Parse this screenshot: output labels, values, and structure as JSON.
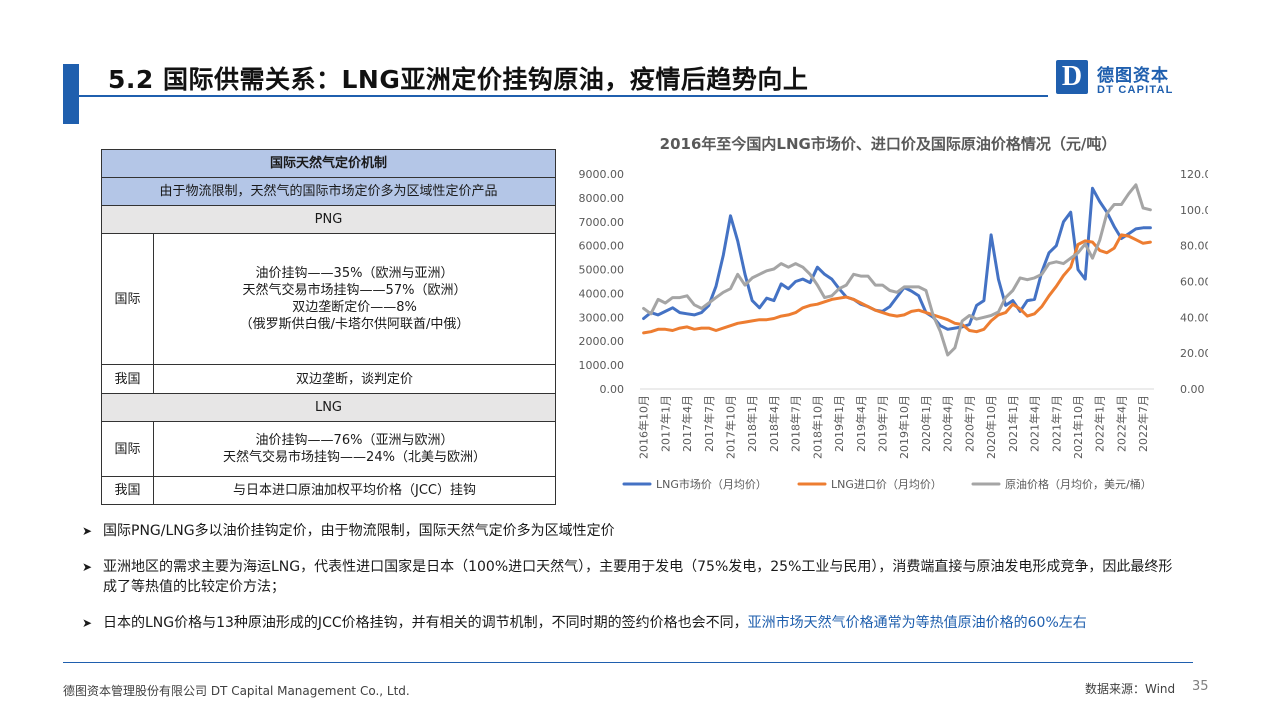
{
  "header": {
    "title": "5.2 国际供需关系：LNG亚洲定价挂钩原油，疫情后趋势向上",
    "logo_mark": "D",
    "logo_cn": "德图资本",
    "logo_en": "DT CAPITAL",
    "brand_color": "#1f5fae"
  },
  "table": {
    "title": "国际天然气定价机制",
    "subtitle": "由于物流限制，天然气的国际市场定价多为区域性定价产品",
    "png_label": "PNG",
    "png_intl_label": "国际",
    "png_intl_lines": [
      "油价挂钩——35%（欧洲与亚洲）",
      "天然气交易市场挂钩——57%（欧洲）",
      "双边垄断定价——8%",
      "（俄罗斯供白俄/卡塔尔供阿联酋/中俄）"
    ],
    "png_china_label": "我国",
    "png_china_text": "双边垄断，谈判定价",
    "lng_label": "LNG",
    "lng_intl_label": "国际",
    "lng_intl_lines": [
      "油价挂钩——76%（亚洲与欧洲）",
      "天然气交易市场挂钩——24%（北美与欧洲）"
    ],
    "lng_china_label": "我国",
    "lng_china_text": "与日本进口原油加权平均价格（JCC）挂钩"
  },
  "chart_data": {
    "type": "line",
    "title": "2016年至今国内LNG市场价、进口价及国际原油价格情况（元/吨）",
    "x": [
      "2016年10月",
      "2016年11月",
      "2016年12月",
      "2017年1月",
      "2017年2月",
      "2017年3月",
      "2017年4月",
      "2017年5月",
      "2017年6月",
      "2017年7月",
      "2017年8月",
      "2017年9月",
      "2017年10月",
      "2017年11月",
      "2017年12月",
      "2018年1月",
      "2018年2月",
      "2018年3月",
      "2018年4月",
      "2018年5月",
      "2018年6月",
      "2018年7月",
      "2018年8月",
      "2018年9月",
      "2018年10月",
      "2018年11月",
      "2018年12月",
      "2019年1月",
      "2019年2月",
      "2019年3月",
      "2019年4月",
      "2019年5月",
      "2019年6月",
      "2019年7月",
      "2019年8月",
      "2019年9月",
      "2019年10月",
      "2019年11月",
      "2019年12月",
      "2020年1月",
      "2020年2月",
      "2020年3月",
      "2020年4月",
      "2020年5月",
      "2020年6月",
      "2020年7月",
      "2020年8月",
      "2020年9月",
      "2020年10月",
      "2020年11月",
      "2020年12月",
      "2021年1月",
      "2021年2月",
      "2021年3月",
      "2021年4月",
      "2021年5月",
      "2021年6月",
      "2021年7月",
      "2021年8月",
      "2021年9月",
      "2021年10月",
      "2021年11月",
      "2021年12月",
      "2022年1月",
      "2022年2月",
      "2022年3月",
      "2022年4月",
      "2022年5月",
      "2022年6月",
      "2022年7月",
      "2022年8月"
    ],
    "x_tick_labels": [
      "2016年10月",
      "2017年1月",
      "2017年4月",
      "2017年7月",
      "2017年10月",
      "2018年1月",
      "2018年4月",
      "2018年7月",
      "2018年10月",
      "2019年1月",
      "2019年4月",
      "2019年7月",
      "2019年10月",
      "2020年1月",
      "2020年4月",
      "2020年7月",
      "2020年10月",
      "2021年1月",
      "2021年4月",
      "2021年7月",
      "2021年10月",
      "2022年1月",
      "2022年4月",
      "2022年7月"
    ],
    "y_left_ticks": [
      "0.00",
      "1000.00",
      "2000.00",
      "3000.00",
      "4000.00",
      "5000.00",
      "6000.00",
      "7000.00",
      "8000.00",
      "9000.00"
    ],
    "y_right_ticks": [
      "0.00",
      "20.00",
      "40.00",
      "60.00",
      "80.00",
      "100.00",
      "120.00"
    ],
    "ylim_left": [
      0,
      9000
    ],
    "ylim_right": [
      0,
      120
    ],
    "grid": false,
    "legend_position": "bottom",
    "series": [
      {
        "name": "LNG市场价（月均价）",
        "axis": "left",
        "color": "#4472c4",
        "values": [
          2950,
          3200,
          3100,
          3250,
          3400,
          3200,
          3150,
          3100,
          3200,
          3500,
          4300,
          5600,
          7250,
          6200,
          4800,
          3700,
          3400,
          3800,
          3700,
          4400,
          4200,
          4500,
          4600,
          4450,
          5100,
          4800,
          4600,
          4200,
          3850,
          3750,
          3550,
          3450,
          3300,
          3250,
          3450,
          3850,
          4250,
          4100,
          3900,
          3200,
          3000,
          2650,
          2500,
          2550,
          2600,
          2700,
          3500,
          3700,
          6450,
          4600,
          3500,
          3700,
          3250,
          3700,
          3750,
          4900,
          5700,
          6000,
          7000,
          7400,
          5000,
          4600,
          8400,
          7850,
          7400,
          6800,
          6300,
          6500,
          6700,
          6750,
          6750
        ]
      },
      {
        "name": "LNG进口价（月均价）",
        "axis": "left",
        "color": "#ed7d31",
        "values": [
          2350,
          2400,
          2500,
          2500,
          2450,
          2550,
          2600,
          2500,
          2550,
          2550,
          2450,
          2550,
          2650,
          2750,
          2800,
          2850,
          2900,
          2900,
          2950,
          3050,
          3100,
          3200,
          3400,
          3500,
          3550,
          3650,
          3750,
          3800,
          3850,
          3750,
          3600,
          3450,
          3300,
          3200,
          3100,
          3050,
          3100,
          3250,
          3300,
          3200,
          3100,
          3000,
          2900,
          2750,
          2700,
          2450,
          2400,
          2500,
          2850,
          3100,
          3200,
          3550,
          3350,
          3050,
          3150,
          3450,
          3900,
          4300,
          4750,
          5100,
          6050,
          6200,
          6150,
          5800,
          5700,
          5900,
          6450,
          6400,
          6250,
          6100,
          6150
        ]
      },
      {
        "name": "原油价格（月均价，美元/桶）",
        "axis": "right",
        "color": "#a5a5a5",
        "values": [
          45,
          42,
          50,
          48,
          51,
          51,
          52,
          47,
          45,
          48,
          51,
          54,
          56,
          64,
          58,
          62,
          64,
          66,
          67,
          70,
          68,
          70,
          68,
          64,
          58,
          51,
          52,
          56,
          58,
          64,
          63,
          63,
          58,
          58,
          55,
          54,
          57,
          57,
          57,
          55,
          41,
          32,
          19,
          23,
          38,
          41,
          39,
          40,
          41,
          43,
          51,
          55,
          62,
          61,
          62,
          64,
          70,
          71,
          70,
          73,
          76,
          81,
          73,
          83,
          98,
          103,
          103,
          109,
          114,
          101,
          100
        ]
      }
    ]
  },
  "bullets": {
    "items": [
      {
        "text": "国际PNG/LNG多以油价挂钩定价，由于物流限制，国际天然气定价多为区域性定价",
        "highlight": ""
      },
      {
        "text": "亚洲地区的需求主要为海运LNG，代表性进口国家是日本（100%进口天然气），主要用于发电（75%发电，25%工业与民用），消费端直接与原油发电形成竞争，因此最终形成了等热值的比较定价方法；",
        "highlight": ""
      },
      {
        "text": "日本的LNG价格与13种原油形成的JCC价格挂钩，并有相关的调节机制，不同时期的签约价格也会不同，",
        "highlight": "亚洲市场天然气价格通常为等热值原油价格的60%左右"
      }
    ]
  },
  "footer": {
    "company": "德图资本管理股份有限公司  DT Capital Management  Co., Ltd.",
    "source": "数据来源：Wind",
    "page": "35"
  }
}
